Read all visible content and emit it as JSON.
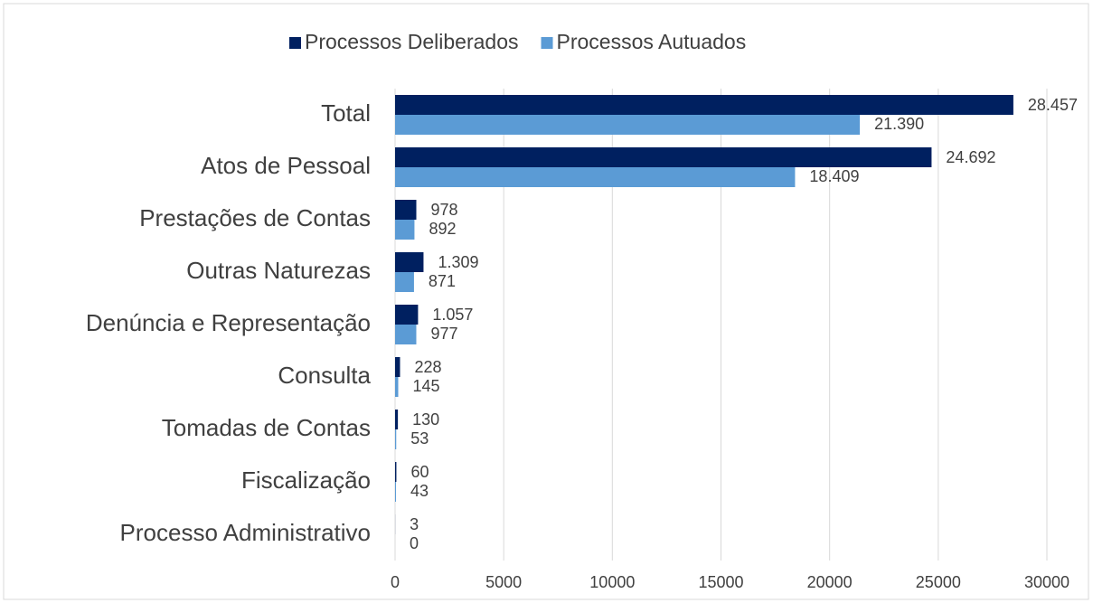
{
  "chart_data": {
    "type": "bar",
    "orientation": "horizontal",
    "categories": [
      "Total",
      "Atos de Pessoal",
      "Prestações de Contas",
      "Outras Naturezas",
      "Denúncia e Representação",
      "Consulta",
      "Tomadas de Contas",
      "Fiscalização",
      "Processo Administrativo"
    ],
    "series": [
      {
        "name": "Processos Deliberados",
        "color": "#002060",
        "values": [
          28457,
          24692,
          978,
          1309,
          1057,
          228,
          130,
          60,
          3
        ],
        "value_labels": [
          "28.457",
          "24.692",
          "978",
          "1.309",
          "1.057",
          "228",
          "130",
          "60",
          "3"
        ]
      },
      {
        "name": "Processos Autuados",
        "color": "#5b9bd5",
        "values": [
          21390,
          18409,
          892,
          871,
          977,
          145,
          53,
          43,
          0
        ],
        "value_labels": [
          "21.390",
          "18.409",
          "892",
          "871",
          "977",
          "145",
          "53",
          "43",
          "0"
        ]
      }
    ],
    "xlim": [
      0,
      30000
    ],
    "xticks": [
      0,
      5000,
      10000,
      15000,
      20000,
      25000,
      30000
    ],
    "grid": true,
    "legend": "top"
  }
}
